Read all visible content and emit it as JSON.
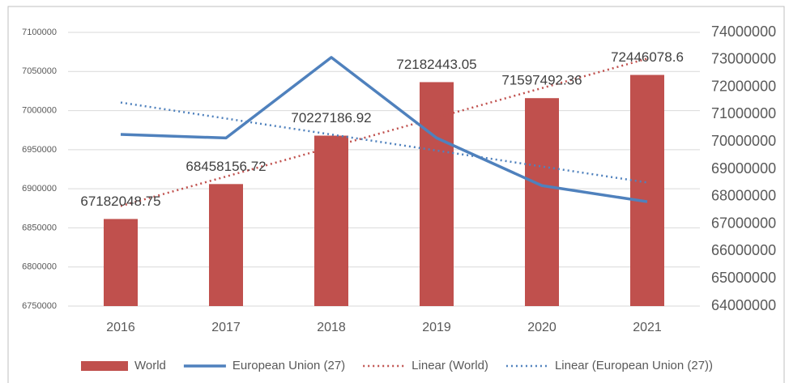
{
  "chart_data": {
    "type": "combo",
    "categories": [
      "2016",
      "2017",
      "2018",
      "2019",
      "2020",
      "2021"
    ],
    "series": [
      {
        "name": "World",
        "type": "bar",
        "axis": "y2",
        "color": "#c0504d",
        "values": [
          67182048.75,
          68458156.72,
          70227186.92,
          72182443.05,
          71597492.36,
          72446078.6
        ],
        "trendline": {
          "name": "Linear (World)",
          "color": "#c0504d"
        }
      },
      {
        "name": "European Union (27)",
        "type": "line",
        "axis": "y",
        "color": "#4f81bd",
        "values": [
          6969500,
          6965000,
          7068000,
          6965000,
          6904000,
          6883500
        ],
        "trendline": {
          "name": "Linear (European Union (27))",
          "color": "#4f81bd"
        }
      }
    ],
    "ylim": [
      6750000,
      7100000
    ],
    "yticks": [
      6750000,
      6800000,
      6850000,
      6900000,
      6950000,
      7000000,
      7050000,
      7100000
    ],
    "y2lim": [
      64000000,
      74000000
    ],
    "y2ticks": [
      64000000,
      65000000,
      66000000,
      67000000,
      68000000,
      69000000,
      70000000,
      71000000,
      72000000,
      73000000,
      74000000
    ],
    "grid": true,
    "legend": "bottom"
  }
}
